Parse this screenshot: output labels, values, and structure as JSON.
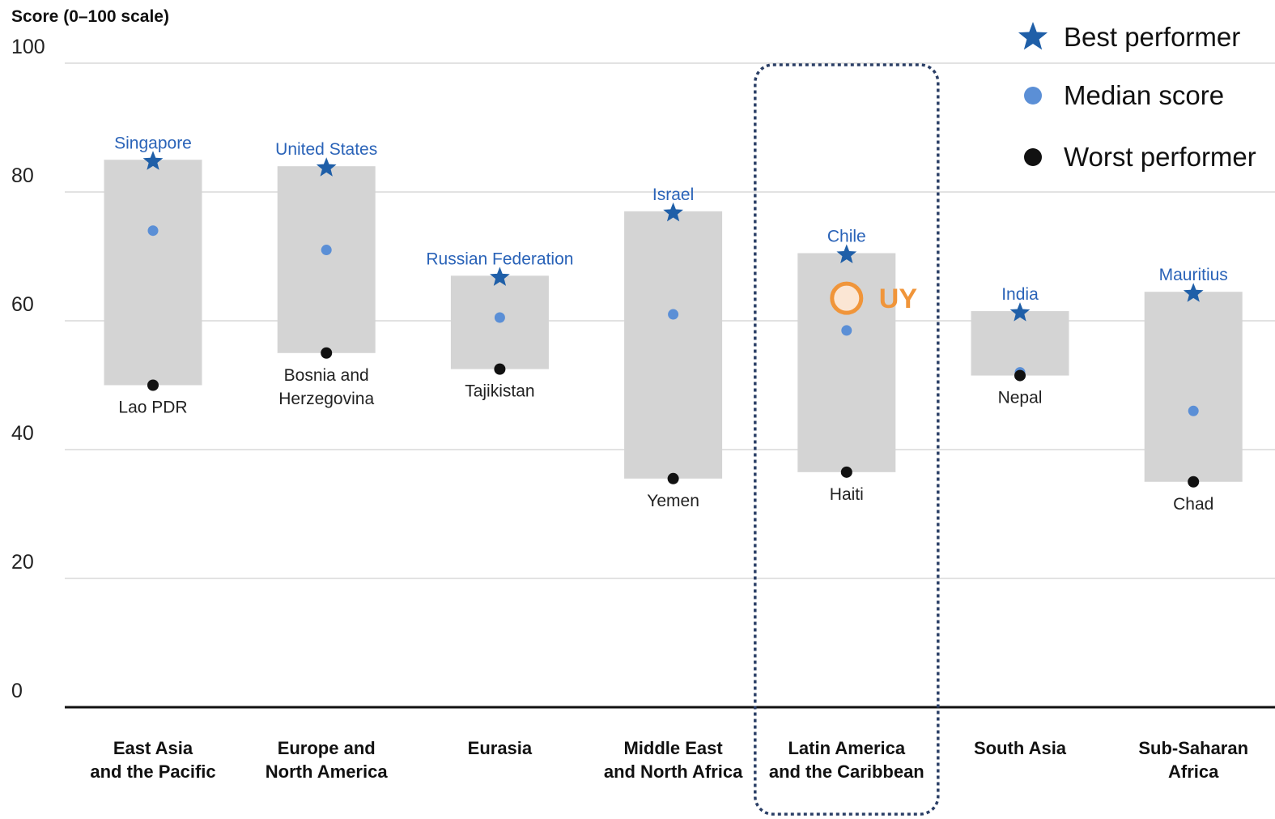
{
  "colors": {
    "box": "#d4d4d4",
    "best": "#1f5fa8",
    "median": "#5b8fd6",
    "worst": "#111111",
    "highlight": "#f0953a",
    "highlight_fill": "#fbe6d4",
    "grid": "#d9d9d9",
    "frame": "#2b3f66"
  },
  "legend": {
    "position": "top-right",
    "items": [
      {
        "label": "Best performer",
        "icon": "star-icon"
      },
      {
        "label": "Median score",
        "icon": "median-dot-icon"
      },
      {
        "label": "Worst performer",
        "icon": "worst-dot-icon"
      }
    ]
  },
  "chart_data": {
    "type": "range",
    "ylabel": "Score (0–100 scale)",
    "ylim": [
      0,
      100
    ],
    "yticks": [
      0,
      20,
      40,
      60,
      80,
      100
    ],
    "grid": true,
    "categories": [
      {
        "name": [
          "East Asia",
          "and the Pacific"
        ],
        "best": 85,
        "best_name": "Singapore",
        "median": 74,
        "worst": 50,
        "worst_name": [
          "Lao PDR"
        ]
      },
      {
        "name": [
          "Europe and",
          "North America"
        ],
        "best": 84,
        "best_name": "United States",
        "median": 71,
        "worst": 55,
        "worst_name": [
          "Bosnia and",
          "Herzegovina"
        ]
      },
      {
        "name": [
          "Eurasia"
        ],
        "best": 67,
        "best_name": "Russian Federation",
        "median": 60.5,
        "worst": 52.5,
        "worst_name": [
          "Tajikistan"
        ]
      },
      {
        "name": [
          "Middle East",
          "and North Africa"
        ],
        "best": 77,
        "best_name": "Israel",
        "median": 61,
        "worst": 35.5,
        "worst_name": [
          "Yemen"
        ]
      },
      {
        "name": [
          "Latin America",
          "and the Caribbean"
        ],
        "best": 70.5,
        "best_name": "Chile",
        "median": 58.5,
        "worst": 36.5,
        "worst_name": [
          "Haiti"
        ],
        "highlighted": true
      },
      {
        "name": [
          "South Asia"
        ],
        "best": 61.5,
        "best_name": "India",
        "median": 52,
        "worst": 51.5,
        "worst_name": [
          "Nepal"
        ]
      },
      {
        "name": [
          "Sub-Saharan",
          "Africa"
        ],
        "best": 64.5,
        "best_name": "Mauritius",
        "median": 46,
        "worst": 35,
        "worst_name": [
          "Chad"
        ]
      }
    ],
    "annotation": {
      "category_index": 4,
      "value": 63.5,
      "label": "UY"
    }
  }
}
